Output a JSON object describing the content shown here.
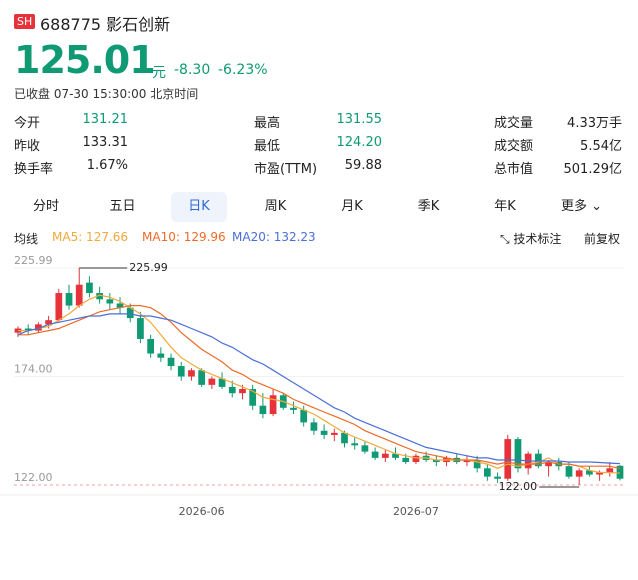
{
  "header": {
    "badge": "SH",
    "code": "688775",
    "name": "影石创新",
    "price": "125.01",
    "unit": "元",
    "change": "-8.30",
    "change_pct": "-6.23%",
    "status": "已收盘 07-30 15:30:00 北京时间"
  },
  "stats": [
    [
      [
        "今开",
        "131.21"
      ],
      [
        "最高",
        "131.55"
      ],
      [
        "成交量",
        "4.33万手"
      ]
    ],
    [
      [
        "昨收",
        "133.31"
      ],
      [
        "最低",
        "124.20"
      ],
      [
        "成交额",
        "5.54亿"
      ]
    ],
    [
      [
        "换手率",
        "1.67%"
      ],
      [
        "市盈(TTM)",
        "59.88"
      ],
      [
        "总市值",
        "501.29亿"
      ]
    ]
  ],
  "tabs": [
    "分时",
    "五日",
    "日K",
    "周K",
    "月K",
    "季K",
    "年K",
    "更多"
  ],
  "indicator": {
    "title": "均线",
    "tools": [
      "技术标注",
      "前复权"
    ]
  },
  "chart_data": {
    "type": "candlestick",
    "categories": [
      null,
      null,
      null,
      null,
      null,
      null,
      null,
      null,
      null,
      null,
      null,
      null,
      null,
      null,
      null,
      null,
      null,
      null,
      "2026-06",
      null,
      null,
      null,
      null,
      null,
      null,
      null,
      null,
      null,
      null,
      null,
      null,
      null,
      null,
      null,
      null,
      null,
      null,
      null,
      null,
      "2026-07",
      null,
      null,
      null,
      null,
      null,
      null,
      null,
      null,
      null,
      null,
      null,
      null,
      null,
      null,
      null,
      null,
      null,
      null,
      null,
      null
    ],
    "open": [
      195,
      197,
      196,
      199,
      201,
      214,
      208,
      219,
      214,
      211,
      209,
      207,
      202,
      192,
      185,
      183,
      179,
      174,
      177,
      170,
      173,
      169,
      166,
      168,
      160,
      156,
      165,
      159,
      158,
      152,
      148,
      146,
      147,
      142,
      141,
      138,
      135,
      137,
      135,
      133,
      136,
      134,
      133,
      135,
      133,
      134,
      130,
      126,
      125,
      144,
      130,
      137,
      131,
      133,
      131,
      126,
      129,
      127,
      128,
      131.21
    ],
    "high": [
      198,
      199,
      200,
      203,
      216,
      218,
      225.99,
      222,
      217,
      214,
      212,
      209,
      205,
      194,
      188,
      185,
      181,
      178,
      178,
      174,
      176,
      172,
      170,
      170,
      166,
      168,
      166,
      162,
      160,
      154,
      151,
      149,
      148,
      145,
      143,
      140,
      139,
      140,
      137,
      137,
      138,
      136,
      136,
      137,
      136,
      136,
      132,
      128,
      146,
      145,
      138,
      139,
      134,
      135,
      133,
      130,
      131,
      129,
      133,
      131.55
    ],
    "low": [
      193,
      194,
      195,
      197,
      200,
      206,
      207,
      212,
      209,
      206,
      204,
      200,
      190,
      183,
      181,
      177,
      172,
      172,
      169,
      168,
      168,
      164,
      163,
      158,
      154,
      155,
      158,
      156,
      150,
      146,
      144,
      143,
      140,
      139,
      137,
      134,
      133,
      134,
      132,
      132,
      133,
      131,
      131,
      132,
      131,
      128,
      124,
      123,
      124,
      128,
      127,
      130,
      126,
      129,
      125,
      122.0,
      126,
      124,
      126,
      124.2
    ],
    "close": [
      197,
      196,
      199,
      201,
      214,
      208,
      218,
      214,
      211,
      209,
      207,
      202,
      192,
      185,
      183,
      179,
      174,
      177,
      170,
      173,
      169,
      166,
      168,
      160,
      156,
      165,
      159,
      158,
      152,
      148,
      146,
      147,
      142,
      141,
      138,
      135,
      137,
      135,
      133,
      136,
      134,
      133,
      135,
      133,
      134,
      130,
      126,
      125,
      144,
      130,
      137,
      131,
      133,
      131,
      126,
      129,
      127,
      128,
      130,
      125.01
    ],
    "up_color": "#e5323b",
    "down_color": "#0f9a73",
    "series": [
      {
        "name": "MA5: 127.66",
        "color": "#f2a93b",
        "values": [
          196,
          196,
          197,
          198,
          201,
          204,
          208,
          211,
          213,
          212,
          210,
          207,
          204,
          200,
          194,
          188,
          183,
          180,
          177,
          175,
          173,
          171,
          169,
          167,
          164,
          163,
          162,
          160,
          158,
          156,
          153,
          150,
          147,
          145,
          143,
          141,
          139,
          137,
          136,
          135,
          135,
          134,
          134,
          134,
          134,
          133,
          132,
          130,
          132,
          131,
          132,
          133,
          135,
          132,
          132,
          131,
          129,
          128,
          128,
          127.66
        ]
      },
      {
        "name": "MA10: 129.96",
        "color": "#ee6b27",
        "values": [
          194,
          194,
          195,
          196,
          197,
          199,
          201,
          203,
          205,
          206,
          207,
          208,
          208,
          207,
          204,
          200,
          195,
          191,
          187,
          184,
          181,
          177,
          175,
          172,
          170,
          168,
          166,
          163,
          161,
          159,
          157,
          155,
          153,
          151,
          148,
          146,
          144,
          142,
          140,
          138,
          137,
          136,
          135,
          134,
          134,
          134,
          133,
          132,
          133,
          132,
          132,
          132,
          133,
          132,
          132,
          131,
          131,
          131,
          131,
          129.96
        ]
      },
      {
        "name": "MA20: 132.23",
        "color": "#4a6fd6",
        "values": [
          194,
          196,
          197,
          199,
          200,
          201,
          202,
          203,
          203,
          204,
          204,
          204,
          203,
          203,
          202,
          201,
          199,
          197,
          195,
          193,
          190,
          188,
          185,
          182,
          180,
          177,
          174,
          171,
          168,
          165,
          162,
          159,
          157,
          154,
          152,
          150,
          148,
          146,
          144,
          142,
          140,
          139,
          138,
          137,
          136,
          135,
          135,
          134,
          134,
          134,
          133.5,
          133.5,
          133.5,
          133.5,
          133,
          133,
          133,
          132.8,
          132.5,
          132.23
        ]
      }
    ],
    "ylim": [
      117.2,
      230.8
    ],
    "yticks": [
      {
        "value": 225.99,
        "label": "225.99"
      },
      {
        "value": 174.0,
        "label": "174.00"
      },
      {
        "value": 122.0,
        "label": "122.00"
      }
    ],
    "annotations": [
      "225.99",
      "122.00"
    ]
  }
}
